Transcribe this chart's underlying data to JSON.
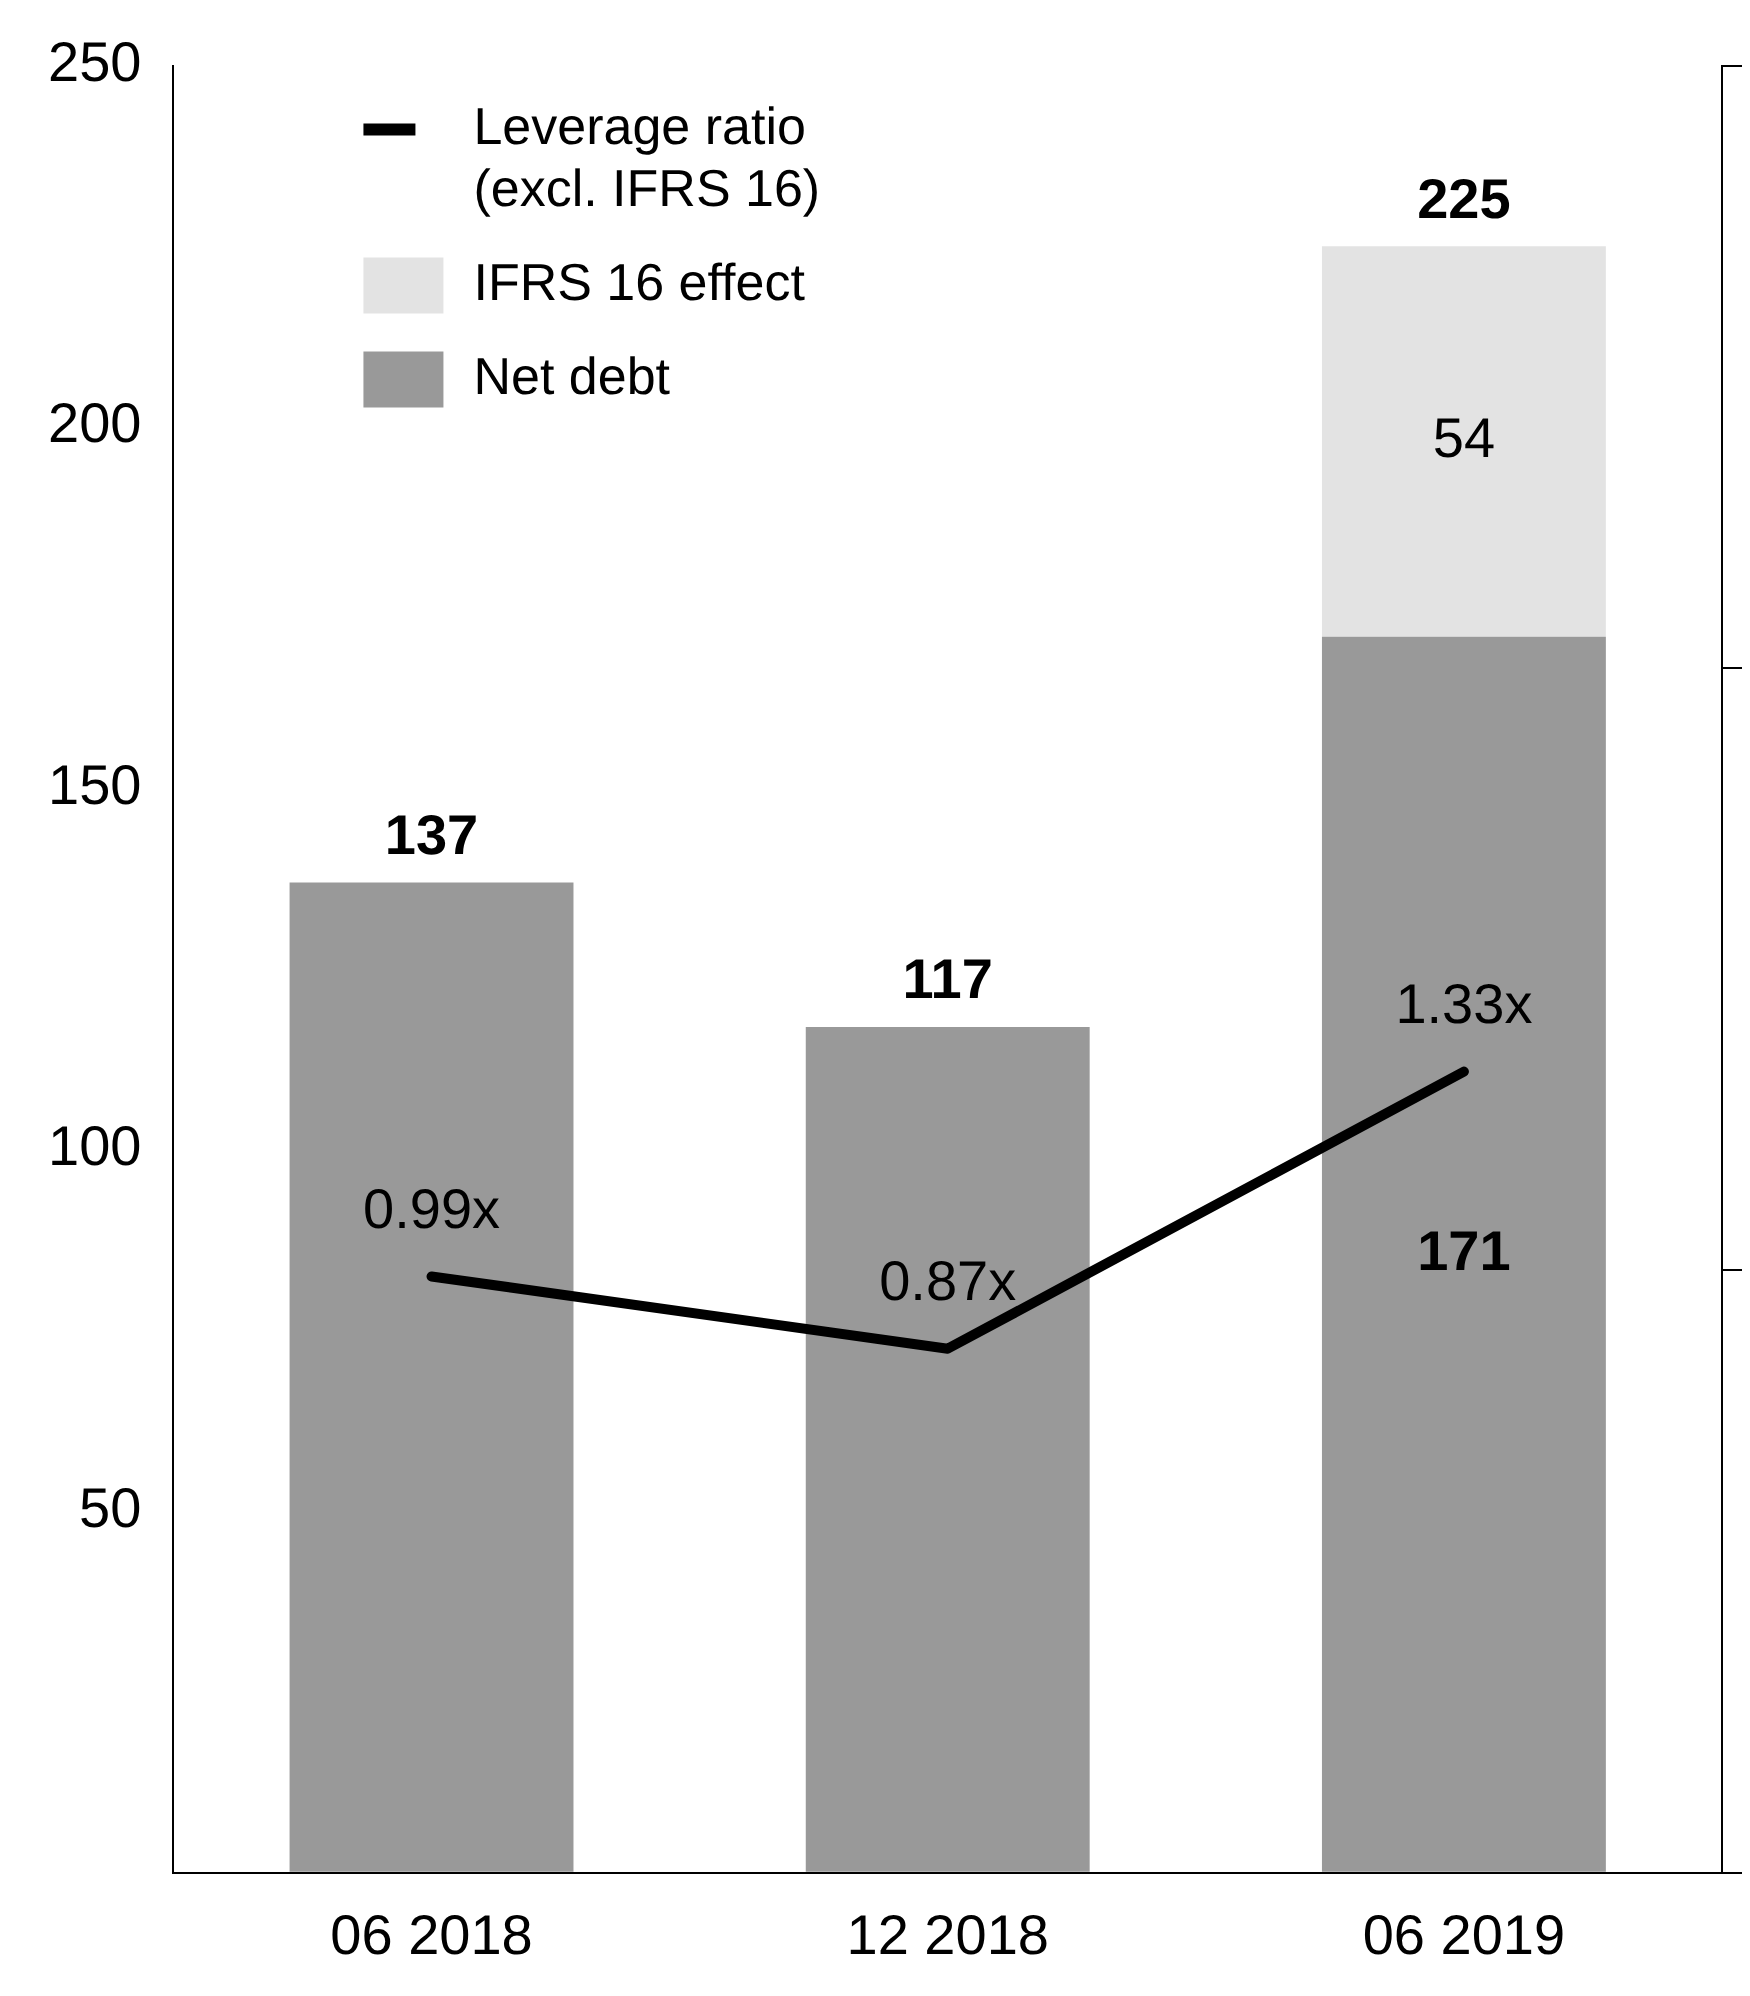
{
  "chart_data": {
    "type": "bar",
    "stacked": true,
    "categories": [
      "06 2018",
      "12 2018",
      "06 2019"
    ],
    "series": [
      {
        "name": "Net debt",
        "color": "#999999",
        "values": [
          137,
          117,
          171
        ],
        "value_labels": [
          null,
          null,
          "171"
        ]
      },
      {
        "name": "IFRS 16 effect",
        "color": "#e3e3e3",
        "values": [
          0,
          0,
          54
        ],
        "value_labels": [
          null,
          null,
          "54"
        ]
      },
      {
        "name": "Leverage ratio (excl. IFRS 16)",
        "type": "line",
        "axis": "y2",
        "color": "#000000",
        "values": [
          0.99,
          0.87,
          1.33
        ],
        "value_labels": [
          "0.99x",
          "0.87x",
          "1.33x"
        ]
      }
    ],
    "totals": [
      "137",
      "117",
      "225"
    ],
    "ylim": [
      0,
      250
    ],
    "yticks": [
      {
        "value": 0,
        "label": null
      },
      50,
      100,
      150,
      200,
      250
    ],
    "y2lim": [
      0,
      3
    ],
    "y2ticks": [
      {
        "value": 0,
        "label": null
      },
      {
        "value": 1,
        "label": null
      },
      {
        "value": 2,
        "label": null
      },
      {
        "value": 3,
        "label": null
      }
    ],
    "legend": "top left",
    "grid": false,
    "marker": "none",
    "line_style": "solid"
  }
}
